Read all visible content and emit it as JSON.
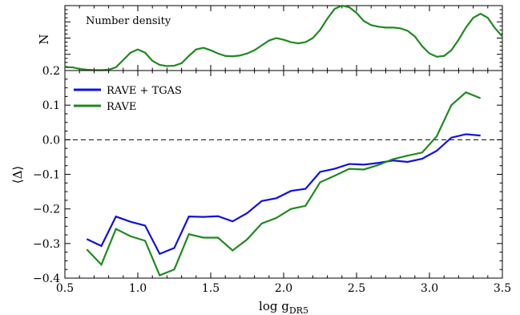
{
  "chart_data": [
    {
      "type": "line",
      "panel": "top",
      "annotation": "Number density",
      "ylabel": "N",
      "xlim": [
        0.5,
        3.5
      ],
      "ylim": [
        0.2,
        1.0
      ],
      "yticks": [
        0.2
      ],
      "ytick_labels": [
        "0.2"
      ],
      "grid": false,
      "series": [
        {
          "color": "#1f8a1f",
          "x": [
            0.5,
            0.55,
            0.6,
            0.65,
            0.7,
            0.75,
            0.8,
            0.85,
            0.9,
            0.95,
            1.0,
            1.05,
            1.1,
            1.15,
            1.2,
            1.25,
            1.3,
            1.35,
            1.4,
            1.45,
            1.5,
            1.55,
            1.6,
            1.65,
            1.7,
            1.75,
            1.8,
            1.85,
            1.9,
            1.95,
            2.0,
            2.05,
            2.1,
            2.15,
            2.2,
            2.25,
            2.3,
            2.35,
            2.4,
            2.45,
            2.5,
            2.55,
            2.6,
            2.65,
            2.7,
            2.75,
            2.8,
            2.85,
            2.9,
            2.95,
            3.0,
            3.05,
            3.1,
            3.15,
            3.2,
            3.25,
            3.3,
            3.35,
            3.4,
            3.45,
            3.5
          ],
          "y": [
            0.24,
            0.24,
            0.22,
            0.21,
            0.205,
            0.205,
            0.21,
            0.24,
            0.33,
            0.42,
            0.46,
            0.42,
            0.32,
            0.27,
            0.255,
            0.26,
            0.29,
            0.38,
            0.46,
            0.48,
            0.45,
            0.41,
            0.38,
            0.375,
            0.385,
            0.41,
            0.45,
            0.51,
            0.57,
            0.6,
            0.58,
            0.55,
            0.535,
            0.55,
            0.6,
            0.7,
            0.84,
            0.96,
            1.0,
            0.98,
            0.91,
            0.81,
            0.76,
            0.74,
            0.73,
            0.73,
            0.72,
            0.69,
            0.62,
            0.5,
            0.41,
            0.37,
            0.38,
            0.45,
            0.58,
            0.73,
            0.85,
            0.9,
            0.85,
            0.72,
            0.62
          ]
        }
      ]
    },
    {
      "type": "line",
      "panel": "bottom",
      "xlabel": "log g",
      "xlabel_sub": "DR5",
      "ylabel": "⟨Δ⟩",
      "xlim": [
        0.5,
        3.5
      ],
      "ylim": [
        -0.4,
        0.2
      ],
      "xticks": [
        0.5,
        1.0,
        1.5,
        2.0,
        2.5,
        3.0,
        3.5
      ],
      "xtick_labels": [
        "0.5",
        "1.0",
        "1.5",
        "2.0",
        "2.5",
        "3.0",
        "3.5"
      ],
      "yticks": [
        -0.4,
        -0.3,
        -0.2,
        -0.1,
        0.0,
        0.1
      ],
      "ytick_labels": [
        "−0.4",
        "−0.3",
        "−0.2",
        "−0.1",
        "0.0",
        "0.1"
      ],
      "reference_line": {
        "y": 0.0,
        "style": "dashed",
        "color": "#000000"
      },
      "legend_position": "top-left",
      "grid": false,
      "series": [
        {
          "name": "RAVE + TGAS",
          "color": "#1010e0",
          "x": [
            0.65,
            0.75,
            0.85,
            0.95,
            1.05,
            1.15,
            1.25,
            1.35,
            1.45,
            1.55,
            1.65,
            1.75,
            1.85,
            1.95,
            2.05,
            2.15,
            2.25,
            2.35,
            2.45,
            2.55,
            2.65,
            2.75,
            2.85,
            2.95,
            3.05,
            3.15,
            3.25,
            3.35
          ],
          "y": [
            -0.287,
            -0.307,
            -0.222,
            -0.237,
            -0.248,
            -0.33,
            -0.313,
            -0.222,
            -0.223,
            -0.221,
            -0.236,
            -0.212,
            -0.177,
            -0.169,
            -0.148,
            -0.142,
            -0.093,
            -0.084,
            -0.07,
            -0.072,
            -0.067,
            -0.06,
            -0.064,
            -0.055,
            -0.032,
            0.006,
            0.016,
            0.012
          ]
        },
        {
          "name": "RAVE",
          "color": "#1f8a1f",
          "x": [
            0.65,
            0.75,
            0.85,
            0.95,
            1.05,
            1.15,
            1.25,
            1.35,
            1.45,
            1.55,
            1.65,
            1.75,
            1.85,
            1.95,
            2.05,
            2.15,
            2.25,
            2.35,
            2.45,
            2.55,
            2.65,
            2.75,
            2.85,
            2.95,
            3.05,
            3.15,
            3.25,
            3.35
          ],
          "y": [
            -0.317,
            -0.361,
            -0.258,
            -0.279,
            -0.292,
            -0.392,
            -0.375,
            -0.273,
            -0.283,
            -0.283,
            -0.32,
            -0.288,
            -0.242,
            -0.226,
            -0.2,
            -0.191,
            -0.123,
            -0.104,
            -0.084,
            -0.086,
            -0.073,
            -0.056,
            -0.046,
            -0.037,
            0.01,
            0.1,
            0.137,
            0.12
          ]
        }
      ]
    }
  ]
}
